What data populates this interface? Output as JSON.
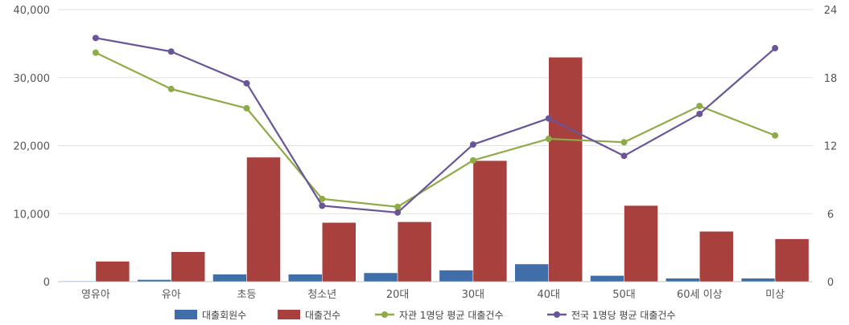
{
  "chart_data": {
    "type": "bar",
    "categories": [
      "영유아",
      "유아",
      "초등",
      "청소년",
      "20대",
      "30대",
      "40대",
      "50대",
      "60세 이상",
      "미상"
    ],
    "series": [
      {
        "name": "대출회원수",
        "kind": "bar",
        "axis": "left",
        "color": "#3f6ea8",
        "values": [
          100,
          300,
          1100,
          1100,
          1300,
          1700,
          2600,
          900,
          500,
          500
        ]
      },
      {
        "name": "대출건수",
        "kind": "bar",
        "axis": "left",
        "color": "#a8403d",
        "values": [
          3000,
          4400,
          18300,
          8700,
          8800,
          17800,
          33000,
          11200,
          7400,
          6300
        ]
      },
      {
        "name": "자관 1명당 평균 대출건수",
        "kind": "line",
        "axis": "right",
        "color": "#8eab47",
        "values": [
          20.2,
          17.0,
          15.3,
          7.3,
          6.6,
          10.7,
          12.6,
          12.3,
          15.5,
          12.9
        ]
      },
      {
        "name": "전국 1명당 평균 대출건수",
        "kind": "line",
        "axis": "right",
        "color": "#6b5599",
        "values": [
          21.5,
          20.3,
          17.5,
          6.7,
          6.1,
          12.1,
          14.4,
          11.1,
          14.8,
          20.6
        ]
      }
    ],
    "y_left": {
      "ylim": [
        0,
        40000
      ],
      "ticks": [
        "0",
        "10,000",
        "20,000",
        "30,000",
        "40,000"
      ]
    },
    "y_right": {
      "ylim": [
        0,
        24
      ],
      "ticks": [
        "0",
        "6",
        "12",
        "18",
        "24"
      ]
    },
    "grid": true,
    "legend_position": "bottom"
  }
}
